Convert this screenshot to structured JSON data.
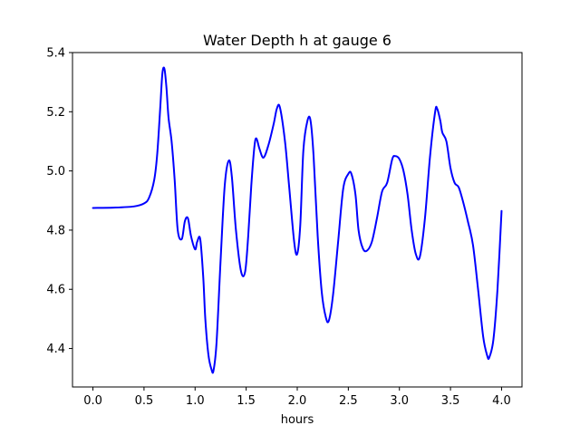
{
  "chart_data": {
    "type": "line",
    "title": "Water Depth h at gauge 6",
    "xlabel": "hours",
    "ylabel": "",
    "xlim": [
      -0.2,
      4.2
    ],
    "ylim": [
      4.27,
      5.4
    ],
    "xticks": [
      0.0,
      0.5,
      1.0,
      1.5,
      2.0,
      2.5,
      3.0,
      3.5,
      4.0
    ],
    "xtick_labels": [
      "0.0",
      "0.5",
      "1.0",
      "1.5",
      "2.0",
      "2.5",
      "3.0",
      "3.5",
      "4.0"
    ],
    "yticks": [
      4.4,
      4.6,
      4.8,
      5.0,
      5.2,
      5.4
    ],
    "ytick_labels": [
      "4.4",
      "4.6",
      "4.8",
      "5.0",
      "5.2",
      "5.4"
    ],
    "grid": false,
    "legend": "none",
    "series": [
      {
        "color": "#0000ff",
        "x": [
          0.0,
          0.2,
          0.4,
          0.5,
          0.55,
          0.6,
          0.63,
          0.66,
          0.68,
          0.7,
          0.72,
          0.74,
          0.77,
          0.8,
          0.83,
          0.87,
          0.9,
          0.93,
          0.96,
          1.0,
          1.02,
          1.05,
          1.08,
          1.1,
          1.13,
          1.16,
          1.18,
          1.21,
          1.25,
          1.29,
          1.33,
          1.36,
          1.4,
          1.45,
          1.49,
          1.52,
          1.55,
          1.58,
          1.6,
          1.63,
          1.67,
          1.72,
          1.77,
          1.8,
          1.83,
          1.88,
          1.92,
          1.97,
          2.0,
          2.03,
          2.06,
          2.1,
          2.13,
          2.16,
          2.2,
          2.24,
          2.28,
          2.31,
          2.35,
          2.4,
          2.45,
          2.5,
          2.53,
          2.57,
          2.6,
          2.64,
          2.68,
          2.73,
          2.78,
          2.83,
          2.88,
          2.93,
          2.96,
          3.0,
          3.04,
          3.08,
          3.12,
          3.16,
          3.2,
          3.25,
          3.3,
          3.35,
          3.37,
          3.4,
          3.42,
          3.46,
          3.5,
          3.54,
          3.58,
          3.62,
          3.67,
          3.72,
          3.77,
          3.82,
          3.86,
          3.88,
          3.92,
          3.96,
          4.0
        ],
        "y": [
          4.875,
          4.876,
          4.88,
          4.89,
          4.91,
          4.97,
          5.06,
          5.22,
          5.33,
          5.345,
          5.28,
          5.18,
          5.1,
          4.97,
          4.8,
          4.77,
          4.83,
          4.84,
          4.78,
          4.735,
          4.76,
          4.77,
          4.64,
          4.5,
          4.38,
          4.33,
          4.325,
          4.42,
          4.7,
          4.95,
          5.035,
          4.98,
          4.8,
          4.66,
          4.66,
          4.78,
          4.95,
          5.08,
          5.11,
          5.075,
          5.045,
          5.09,
          5.16,
          5.21,
          5.215,
          5.1,
          4.95,
          4.76,
          4.72,
          4.82,
          5.07,
          5.17,
          5.17,
          5.05,
          4.78,
          4.59,
          4.505,
          4.495,
          4.58,
          4.76,
          4.94,
          4.99,
          4.99,
          4.92,
          4.8,
          4.74,
          4.73,
          4.76,
          4.84,
          4.93,
          4.96,
          5.04,
          5.05,
          5.04,
          5.0,
          4.92,
          4.8,
          4.72,
          4.71,
          4.84,
          5.05,
          5.2,
          5.21,
          5.17,
          5.13,
          5.1,
          5.01,
          4.96,
          4.945,
          4.9,
          4.83,
          4.75,
          4.6,
          4.44,
          4.375,
          4.37,
          4.43,
          4.6,
          4.865
        ]
      }
    ]
  }
}
